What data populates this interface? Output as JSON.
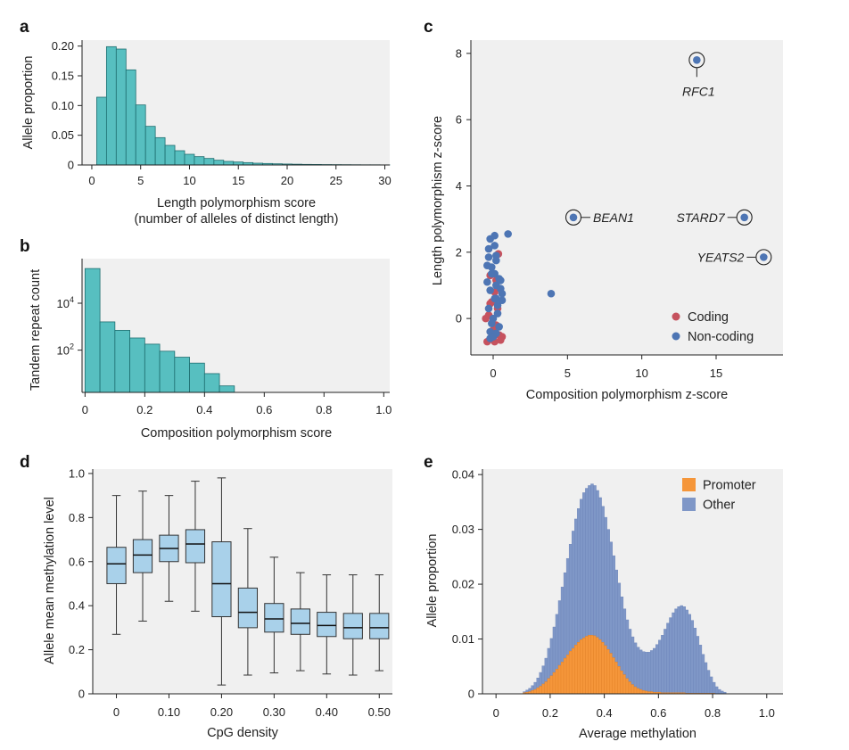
{
  "colors": {
    "teal": "#57bfc0",
    "teal_edge": "#1e6e70",
    "box_fill": "#a9d1ea",
    "box_edge": "#333333",
    "coding": "#c6525e",
    "noncoding": "#4d75b4",
    "promoter": "#f5963a",
    "other": "#7f97c7"
  },
  "chart_data": [
    {
      "id": "a",
      "panel_label": "a",
      "type": "bar",
      "xlabel_line1": "Length polymorphism score",
      "xlabel_line2": "(number of alleles of distinct length)",
      "ylabel": "Allele proportion",
      "xlim": [
        -1,
        30.5
      ],
      "ylim": [
        0,
        0.21
      ],
      "xticks": [
        0,
        5,
        10,
        15,
        20,
        25,
        30
      ],
      "xtick_labels": [
        "0",
        "5",
        "10",
        "15",
        "20",
        "25",
        "30"
      ],
      "yticks": [
        0,
        0.05,
        0.1,
        0.15,
        0.2
      ],
      "ytick_labels": [
        "0",
        "0.05",
        "0.10",
        "0.15",
        "0.20"
      ],
      "x": [
        1,
        2,
        3,
        4,
        5,
        6,
        7,
        8,
        9,
        10,
        11,
        12,
        13,
        14,
        15,
        16,
        17,
        18,
        19,
        20,
        21,
        22,
        23,
        24,
        25,
        26,
        27,
        28,
        29,
        30
      ],
      "values": [
        0.114,
        0.199,
        0.195,
        0.16,
        0.101,
        0.065,
        0.046,
        0.033,
        0.024,
        0.018,
        0.014,
        0.011,
        0.008,
        0.006,
        0.005,
        0.004,
        0.003,
        0.0025,
        0.002,
        0.0016,
        0.0013,
        0.001,
        0.0009,
        0.0007,
        0.0006,
        0.0005,
        0.0004,
        0.0003,
        0.0003,
        0.0002
      ]
    },
    {
      "id": "b",
      "panel_label": "b",
      "type": "bar",
      "scale": "log",
      "xlabel": "Composition polymorphism score",
      "ylabel": "Tandem repeat count",
      "xlim": [
        -0.01,
        1.02
      ],
      "ylim_log10": [
        0.2,
        5.9
      ],
      "xticks": [
        0,
        0.2,
        0.4,
        0.6,
        0.8,
        1.0
      ],
      "xtick_labels": [
        "0",
        "0.2",
        "0.4",
        "0.6",
        "0.8",
        "1.0"
      ],
      "yticks_log10": [
        2,
        4
      ],
      "ytick_base": "10",
      "ytick_exponents": [
        "2",
        "4"
      ],
      "bin_width": 0.05,
      "bin_starts": [
        0,
        0.05,
        0.1,
        0.15,
        0.2,
        0.25,
        0.3,
        0.35,
        0.4,
        0.45
      ],
      "values": [
        300000,
        1600,
        700,
        330,
        180,
        90,
        50,
        28,
        10,
        3
      ]
    },
    {
      "id": "c",
      "panel_label": "c",
      "type": "scatter",
      "xlabel": "Composition polymorphism z-score",
      "ylabel": "Length polymorphism z-score",
      "xlim": [
        -1.5,
        19.5
      ],
      "ylim": [
        -1.1,
        8.4
      ],
      "xticks": [
        0,
        5,
        10,
        15
      ],
      "xtick_labels": [
        "0",
        "5",
        "10",
        "15"
      ],
      "yticks": [
        0,
        2,
        4,
        6,
        8
      ],
      "ytick_labels": [
        "0",
        "2",
        "4",
        "6",
        "8"
      ],
      "legend_position": "bottom-right",
      "series": [
        {
          "name": "Coding",
          "color_key": "coding",
          "points": [
            [
              -0.3,
              0.1
            ],
            [
              0.2,
              -0.2
            ],
            [
              -0.1,
              0.5
            ],
            [
              0.4,
              -0.5
            ],
            [
              0.1,
              0.8
            ],
            [
              -0.4,
              -0.7
            ],
            [
              0.3,
              0.3
            ],
            [
              0.5,
              -0.65
            ],
            [
              0.0,
              -0.35
            ],
            [
              0.2,
              1.15
            ],
            [
              -0.2,
              0.45
            ],
            [
              0.35,
              1.95
            ],
            [
              -0.5,
              0.0
            ],
            [
              0.6,
              -0.55
            ],
            [
              0.1,
              -0.7
            ],
            [
              -0.2,
              1.3
            ]
          ]
        },
        {
          "name": "Non-coding",
          "color_key": "noncoding",
          "points": [
            [
              -0.2,
              2.4
            ],
            [
              0.1,
              2.2
            ],
            [
              -0.3,
              1.85
            ],
            [
              0.2,
              1.75
            ],
            [
              -0.1,
              1.35
            ],
            [
              0.4,
              1.2
            ],
            [
              0.2,
              1.0
            ],
            [
              -0.2,
              0.85
            ],
            [
              0.5,
              0.9
            ],
            [
              0.1,
              0.6
            ],
            [
              -0.3,
              0.3
            ],
            [
              0.3,
              0.4
            ],
            [
              0.0,
              0.0
            ],
            [
              0.6,
              0.75
            ],
            [
              -0.1,
              -0.15
            ],
            [
              0.2,
              -0.45
            ],
            [
              -0.2,
              -0.4
            ],
            [
              0.4,
              -0.25
            ],
            [
              0.1,
              2.5
            ],
            [
              1.0,
              2.55
            ],
            [
              -0.4,
              1.6
            ],
            [
              0.2,
              1.9
            ],
            [
              -0.1,
              1.55
            ],
            [
              -0.4,
              1.1
            ],
            [
              0.1,
              1.35
            ],
            [
              0.2,
              0.6
            ],
            [
              -0.2,
              -0.6
            ],
            [
              0.3,
              0.15
            ],
            [
              3.9,
              0.75
            ],
            [
              0.5,
              1.15
            ],
            [
              0.0,
              -0.55
            ],
            [
              -0.3,
              2.1
            ],
            [
              0.6,
              0.55
            ]
          ]
        }
      ],
      "highlighted": [
        {
          "gene": "RFC1",
          "x": 13.7,
          "y": 7.8
        },
        {
          "gene": "BEAN1",
          "x": 5.4,
          "y": 3.05
        },
        {
          "gene": "STARD7",
          "x": 16.9,
          "y": 3.05
        },
        {
          "gene": "YEATS2",
          "x": 18.2,
          "y": 1.85
        }
      ]
    },
    {
      "id": "d",
      "panel_label": "d",
      "type": "boxplot",
      "xlabel": "CpG density",
      "ylabel": "Allele mean methylation level",
      "xlim": [
        -0.045,
        0.525
      ],
      "ylim": [
        0,
        1.02
      ],
      "xticks": [
        0,
        0.1,
        0.2,
        0.3,
        0.4,
        0.5
      ],
      "xtick_labels": [
        "0",
        "0.10",
        "0.20",
        "0.30",
        "0.40",
        "0.50"
      ],
      "yticks": [
        0,
        0.2,
        0.4,
        0.6,
        0.8,
        1.0
      ],
      "ytick_labels": [
        "0",
        "0.2",
        "0.4",
        "0.6",
        "0.8",
        "1.0"
      ],
      "box_width": 0.036,
      "boxes": [
        {
          "x": 0.0,
          "low": 0.27,
          "q1": 0.5,
          "median": 0.59,
          "q3": 0.665,
          "high": 0.9
        },
        {
          "x": 0.05,
          "low": 0.33,
          "q1": 0.55,
          "median": 0.63,
          "q3": 0.7,
          "high": 0.92
        },
        {
          "x": 0.1,
          "low": 0.42,
          "q1": 0.6,
          "median": 0.66,
          "q3": 0.72,
          "high": 0.9
        },
        {
          "x": 0.15,
          "low": 0.375,
          "q1": 0.595,
          "median": 0.68,
          "q3": 0.745,
          "high": 0.965
        },
        {
          "x": 0.2,
          "low": 0.04,
          "q1": 0.35,
          "median": 0.5,
          "q3": 0.69,
          "high": 0.98
        },
        {
          "x": 0.25,
          "low": 0.085,
          "q1": 0.3,
          "median": 0.37,
          "q3": 0.48,
          "high": 0.75
        },
        {
          "x": 0.3,
          "low": 0.095,
          "q1": 0.28,
          "median": 0.34,
          "q3": 0.41,
          "high": 0.62
        },
        {
          "x": 0.35,
          "low": 0.105,
          "q1": 0.27,
          "median": 0.32,
          "q3": 0.385,
          "high": 0.55
        },
        {
          "x": 0.4,
          "low": 0.09,
          "q1": 0.26,
          "median": 0.31,
          "q3": 0.37,
          "high": 0.54
        },
        {
          "x": 0.45,
          "low": 0.085,
          "q1": 0.25,
          "median": 0.3,
          "q3": 0.365,
          "high": 0.54
        },
        {
          "x": 0.5,
          "low": 0.105,
          "q1": 0.25,
          "median": 0.3,
          "q3": 0.365,
          "high": 0.54
        }
      ]
    },
    {
      "id": "e",
      "panel_label": "e",
      "type": "bar",
      "stacked": true,
      "xlabel": "Average methylation",
      "ylabel": "Allele proportion",
      "xlim": [
        -0.05,
        1.06
      ],
      "ylim": [
        0,
        0.041
      ],
      "xticks": [
        0,
        0.2,
        0.4,
        0.6,
        0.8,
        1.0
      ],
      "xtick_labels": [
        "0",
        "0.2",
        "0.4",
        "0.6",
        "0.8",
        "1.0"
      ],
      "yticks": [
        0,
        0.01,
        0.02,
        0.03,
        0.04
      ],
      "ytick_labels": [
        "0",
        "0.01",
        "0.02",
        "0.03",
        "0.04"
      ],
      "legend_position": "top-right",
      "bin_width": 0.01,
      "bin_start": 0.1,
      "series": [
        {
          "name": "Promoter",
          "color_key": "promoter",
          "values": [
            0.0002,
            0.0003,
            0.0004,
            0.0006,
            0.0008,
            0.0011,
            0.0014,
            0.0018,
            0.0022,
            0.0028,
            0.0033,
            0.0039,
            0.0045,
            0.0052,
            0.0058,
            0.0065,
            0.0071,
            0.0078,
            0.0083,
            0.0089,
            0.0094,
            0.0099,
            0.0102,
            0.0105,
            0.0107,
            0.0107,
            0.0106,
            0.0103,
            0.0099,
            0.0094,
            0.0088,
            0.0081,
            0.0074,
            0.0066,
            0.0058,
            0.005,
            0.0042,
            0.0035,
            0.0028,
            0.0022,
            0.0017,
            0.0013,
            0.001,
            0.0008,
            0.0006,
            0.0005,
            0.0004,
            0.0004,
            0.0003,
            0.0003,
            0.0003,
            0.0002,
            0.0002,
            0.0002,
            0.0002,
            0.0002,
            0.0002,
            0.0002,
            0.0002,
            0.0002,
            0.0001,
            0.0001,
            0.0001,
            0.0001,
            0.0001,
            0.0001,
            0.0001,
            0.0001,
            0.0001,
            0.0001,
            0.0001,
            0.0,
            0.0,
            0.0,
            0.0
          ]
        },
        {
          "name": "Other",
          "color_key": "other",
          "values": [
            0.0002,
            0.0004,
            0.0006,
            0.0009,
            0.0013,
            0.0018,
            0.0025,
            0.0033,
            0.0043,
            0.0055,
            0.0068,
            0.0083,
            0.01,
            0.0118,
            0.0137,
            0.0156,
            0.0176,
            0.0195,
            0.0214,
            0.023,
            0.0244,
            0.0256,
            0.0265,
            0.027,
            0.0273,
            0.0276,
            0.0274,
            0.0268,
            0.0259,
            0.0248,
            0.0234,
            0.0219,
            0.0203,
            0.0186,
            0.0168,
            0.0152,
            0.0135,
            0.012,
            0.0107,
            0.0096,
            0.0087,
            0.008,
            0.0075,
            0.0072,
            0.0071,
            0.0071,
            0.0072,
            0.0075,
            0.008,
            0.0087,
            0.0095,
            0.0105,
            0.0116,
            0.0127,
            0.0137,
            0.0146,
            0.0153,
            0.0157,
            0.0159,
            0.0157,
            0.0152,
            0.0144,
            0.0133,
            0.0119,
            0.0104,
            0.0088,
            0.0071,
            0.0056,
            0.0042,
            0.003,
            0.002,
            0.0013,
            0.0008,
            0.0005,
            0.0003
          ]
        }
      ]
    }
  ]
}
